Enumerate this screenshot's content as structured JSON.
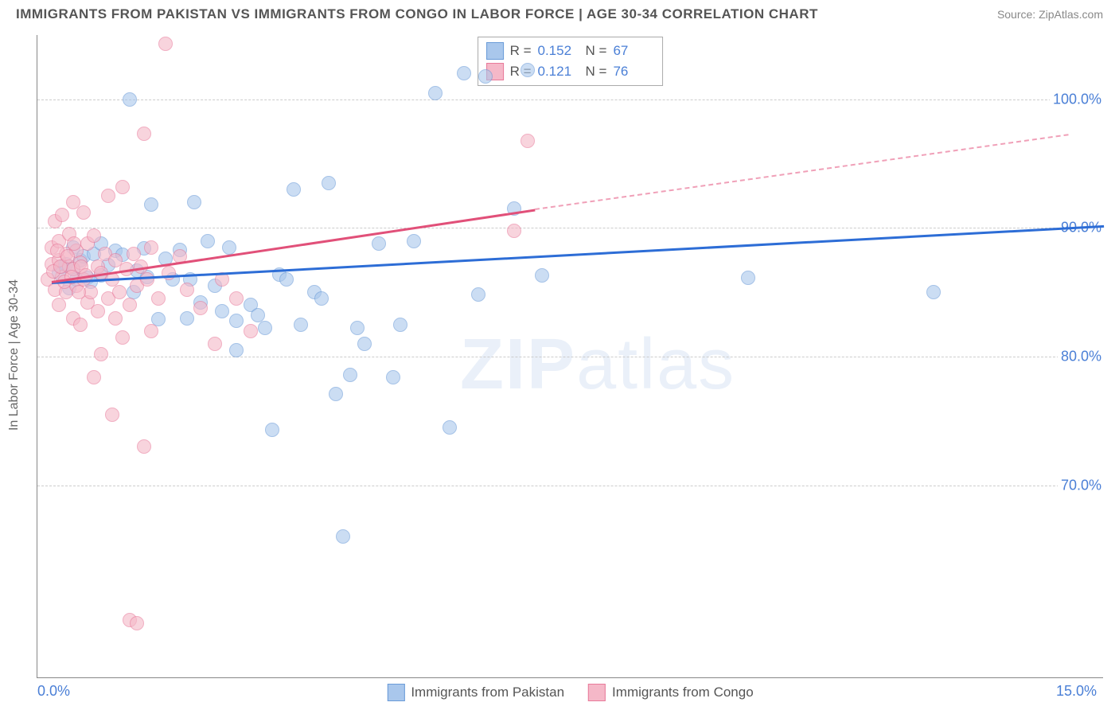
{
  "title": "IMMIGRANTS FROM PAKISTAN VS IMMIGRANTS FROM CONGO IN LABOR FORCE | AGE 30-34 CORRELATION CHART",
  "source_label": "Source: ZipAtlas.com",
  "watermark": "ZIPatlas",
  "chart": {
    "type": "scatter",
    "ylabel": "In Labor Force | Age 30-34",
    "xlim": [
      0,
      15
    ],
    "ylim": [
      55,
      105
    ],
    "xticks": [
      {
        "v": 0,
        "label": "0.0%"
      },
      {
        "v": 15,
        "label": "15.0%"
      }
    ],
    "yticks": [
      {
        "v": 70,
        "label": "70.0%"
      },
      {
        "v": 80,
        "label": "80.0%"
      },
      {
        "v": 90,
        "label": "90.0%"
      },
      {
        "v": 100,
        "label": "100.0%"
      }
    ],
    "grid_color": "#cccccc",
    "axis_color": "#888888",
    "background": "#ffffff",
    "marker_size": 18,
    "series": [
      {
        "name": "Immigrants from Pakistan",
        "fill": "#a9c7ec",
        "stroke": "#6a9bd8",
        "R": "0.152",
        "N": "67",
        "trend": {
          "x0": 0.2,
          "y0": 85.8,
          "x1": 15.0,
          "y1": 90.2,
          "dash": false,
          "color": "#2d6dd6",
          "width": 3
        },
        "points": [
          [
            0.3,
            86.5
          ],
          [
            0.4,
            87.2
          ],
          [
            0.5,
            86.8
          ],
          [
            0.45,
            85.3
          ],
          [
            0.6,
            87.5
          ],
          [
            0.55,
            86.0
          ],
          [
            0.7,
            86.1
          ],
          [
            0.65,
            87.8
          ],
          [
            0.8,
            88.0
          ],
          [
            0.9,
            86.3
          ],
          [
            1.0,
            87.1
          ],
          [
            1.1,
            88.2
          ],
          [
            1.5,
            88.4
          ],
          [
            1.3,
            100.0
          ],
          [
            1.4,
            86.7
          ],
          [
            1.6,
            91.8
          ],
          [
            1.7,
            82.9
          ],
          [
            1.8,
            87.6
          ],
          [
            1.9,
            86.0
          ],
          [
            2.0,
            88.3
          ],
          [
            2.1,
            83.0
          ],
          [
            2.2,
            92.0
          ],
          [
            2.3,
            84.2
          ],
          [
            2.4,
            89.0
          ],
          [
            2.7,
            88.5
          ],
          [
            2.8,
            82.8
          ],
          [
            2.8,
            80.5
          ],
          [
            3.0,
            84.0
          ],
          [
            3.2,
            82.2
          ],
          [
            3.3,
            74.3
          ],
          [
            3.4,
            86.4
          ],
          [
            3.6,
            93.0
          ],
          [
            3.7,
            82.5
          ],
          [
            3.9,
            85.0
          ],
          [
            4.1,
            93.5
          ],
          [
            4.2,
            77.1
          ],
          [
            4.3,
            66.0
          ],
          [
            4.4,
            78.6
          ],
          [
            4.5,
            82.2
          ],
          [
            4.8,
            88.8
          ],
          [
            5.0,
            78.4
          ],
          [
            5.1,
            82.5
          ],
          [
            5.3,
            89.0
          ],
          [
            5.6,
            100.5
          ],
          [
            5.8,
            74.5
          ],
          [
            6.0,
            102.0
          ],
          [
            6.2,
            84.8
          ],
          [
            6.3,
            101.8
          ],
          [
            6.7,
            91.5
          ],
          [
            6.9,
            102.3
          ],
          [
            7.1,
            86.3
          ],
          [
            10.0,
            86.1
          ],
          [
            12.6,
            85.0
          ],
          [
            0.35,
            87.0
          ],
          [
            0.75,
            85.8
          ],
          [
            1.2,
            87.9
          ],
          [
            1.35,
            85.0
          ],
          [
            1.55,
            86.2
          ],
          [
            2.5,
            85.5
          ],
          [
            2.6,
            83.5
          ],
          [
            3.1,
            83.2
          ],
          [
            3.5,
            86.0
          ],
          [
            4.0,
            84.5
          ],
          [
            4.6,
            81.0
          ],
          [
            0.5,
            88.5
          ],
          [
            0.9,
            88.8
          ],
          [
            2.15,
            86.0
          ]
        ]
      },
      {
        "name": "Immigrants from Congo",
        "fill": "#f5b8c8",
        "stroke": "#e87a9a",
        "R": "0.121",
        "N": "76",
        "trend_solid": {
          "x0": 0.2,
          "y0": 85.9,
          "x1": 7.0,
          "y1": 91.5,
          "dash": false,
          "color": "#e15079",
          "width": 3
        },
        "trend_dash": {
          "x0": 7.0,
          "y0": 91.5,
          "x1": 14.5,
          "y1": 97.3,
          "dash": true,
          "color": "#f0a0b8",
          "width": 2
        },
        "points": [
          [
            0.15,
            86.0
          ],
          [
            0.2,
            87.2
          ],
          [
            0.2,
            88.5
          ],
          [
            0.25,
            90.5
          ],
          [
            0.25,
            85.2
          ],
          [
            0.3,
            89.0
          ],
          [
            0.3,
            87.5
          ],
          [
            0.3,
            84.0
          ],
          [
            0.35,
            91.0
          ],
          [
            0.35,
            86.2
          ],
          [
            0.4,
            88.0
          ],
          [
            0.4,
            85.0
          ],
          [
            0.45,
            87.0
          ],
          [
            0.45,
            89.5
          ],
          [
            0.5,
            86.8
          ],
          [
            0.5,
            92.0
          ],
          [
            0.5,
            83.0
          ],
          [
            0.55,
            88.2
          ],
          [
            0.55,
            85.5
          ],
          [
            0.6,
            87.3
          ],
          [
            0.6,
            82.5
          ],
          [
            0.65,
            91.2
          ],
          [
            0.65,
            86.0
          ],
          [
            0.7,
            88.8
          ],
          [
            0.7,
            84.2
          ],
          [
            0.75,
            85.0
          ],
          [
            0.8,
            89.4
          ],
          [
            0.8,
            78.4
          ],
          [
            0.85,
            87.0
          ],
          [
            0.85,
            83.5
          ],
          [
            0.9,
            86.5
          ],
          [
            0.9,
            80.2
          ],
          [
            0.95,
            88.0
          ],
          [
            1.0,
            84.5
          ],
          [
            1.0,
            92.5
          ],
          [
            1.05,
            86.0
          ],
          [
            1.05,
            75.5
          ],
          [
            1.1,
            87.5
          ],
          [
            1.1,
            83.0
          ],
          [
            1.15,
            85.0
          ],
          [
            1.2,
            93.2
          ],
          [
            1.2,
            81.5
          ],
          [
            1.25,
            86.8
          ],
          [
            1.3,
            84.0
          ],
          [
            1.3,
            59.5
          ],
          [
            1.35,
            88.0
          ],
          [
            1.4,
            59.3
          ],
          [
            1.4,
            85.5
          ],
          [
            1.45,
            87.0
          ],
          [
            1.5,
            73.0
          ],
          [
            1.5,
            97.3
          ],
          [
            1.55,
            86.0
          ],
          [
            1.6,
            82.0
          ],
          [
            1.6,
            88.5
          ],
          [
            1.7,
            84.5
          ],
          [
            1.8,
            104.3
          ],
          [
            1.85,
            86.5
          ],
          [
            2.0,
            87.8
          ],
          [
            2.1,
            85.2
          ],
          [
            2.3,
            83.8
          ],
          [
            2.5,
            81.0
          ],
          [
            2.6,
            86.0
          ],
          [
            2.8,
            84.5
          ],
          [
            3.0,
            82.0
          ],
          [
            6.7,
            89.8
          ],
          [
            6.9,
            96.8
          ],
          [
            0.22,
            86.6
          ],
          [
            0.28,
            88.2
          ],
          [
            0.33,
            87.0
          ],
          [
            0.38,
            85.8
          ],
          [
            0.42,
            87.8
          ],
          [
            0.48,
            86.2
          ],
          [
            0.52,
            88.8
          ],
          [
            0.58,
            85.0
          ],
          [
            0.62,
            87.0
          ],
          [
            0.68,
            86.3
          ]
        ]
      }
    ],
    "legend_top_labels": {
      "R": "R =",
      "N": "N ="
    }
  }
}
